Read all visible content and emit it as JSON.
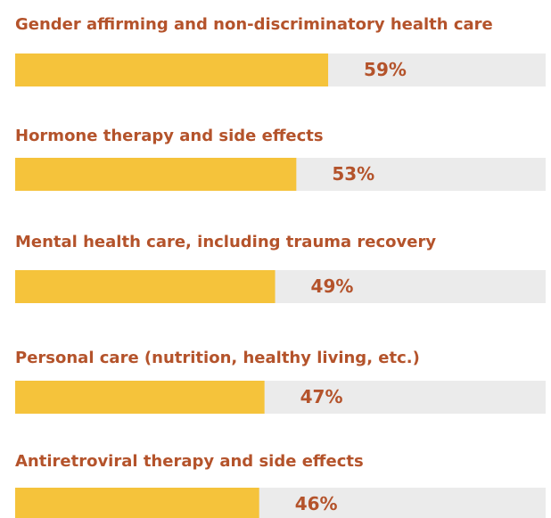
{
  "chart_data": {
    "type": "bar",
    "orientation": "horizontal",
    "categories": [
      "Gender affirming and non-discriminatory health care",
      "Hormone therapy and side effects",
      "Mental health care, including trauma recovery",
      "Personal care (nutrition, healthy living, etc.)",
      "Antiretroviral therapy and side effects"
    ],
    "values": [
      59,
      53,
      49,
      47,
      46
    ],
    "value_labels": [
      "59%",
      "53%",
      "49%",
      "47%",
      "46%"
    ],
    "color": "#f5c33b",
    "track_color": "#ebebeb",
    "xlim": [
      0,
      100
    ]
  }
}
